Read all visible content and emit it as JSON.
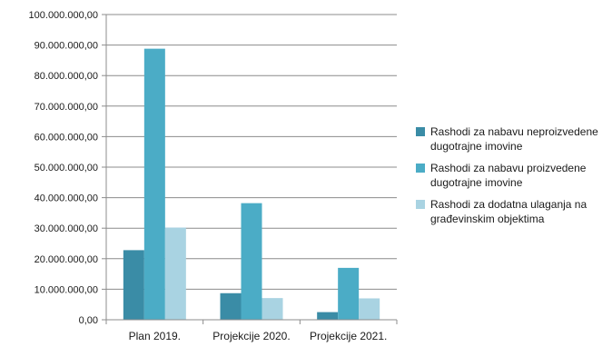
{
  "chart_data": {
    "type": "bar",
    "categories": [
      "Plan 2019.",
      "Projekcije 2020.",
      "Projekcije 2021."
    ],
    "series": [
      {
        "name": "Rashodi za nabavu neproizvedene dugotrajne imovine",
        "color": "#3A8CA6",
        "values": [
          22800000,
          8700000,
          2500000
        ]
      },
      {
        "name": "Rashodi za nabavu proizvedene dugotrajne imovine",
        "color": "#4BACC6",
        "values": [
          88800000,
          38200000,
          17000000
        ]
      },
      {
        "name": "Rashodi za dodatna ulaganja na građevinskim objektima",
        "color": "#A9D3E2",
        "values": [
          30200000,
          7100000,
          7000000
        ]
      }
    ],
    "y_ticks": [
      "0,00",
      "10.000.000,00",
      "20.000.000,00",
      "30.000.000,00",
      "40.000.000,00",
      "50.000.000,00",
      "60.000.000,00",
      "70.000.000,00",
      "80.000.000,00",
      "90.000.000,00",
      "100.000.000,00"
    ],
    "ylim": [
      0,
      100000000
    ],
    "grid": true,
    "legend_position": "right",
    "title": "",
    "xlabel": "",
    "ylabel": ""
  }
}
